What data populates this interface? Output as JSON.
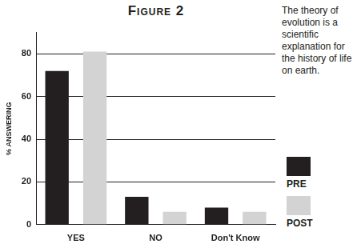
{
  "chart_data": {
    "type": "bar",
    "title": "Figure 2",
    "annotation": "The theory of evolution is a scientific explanation for the history of life on earth.",
    "y_label": "% ANSWERING",
    "categories": [
      "YES",
      "NO",
      "Don't Know"
    ],
    "series": [
      {
        "name": "PRE",
        "color": "#231f20",
        "values": [
          72,
          13,
          8
        ]
      },
      {
        "name": "POST",
        "color": "#d3d3d3",
        "values": [
          81,
          6,
          6
        ]
      }
    ],
    "ylim": [
      0,
      90
    ],
    "yticks": [
      0,
      20,
      40,
      60,
      80
    ],
    "grid": true,
    "legend": "right"
  }
}
